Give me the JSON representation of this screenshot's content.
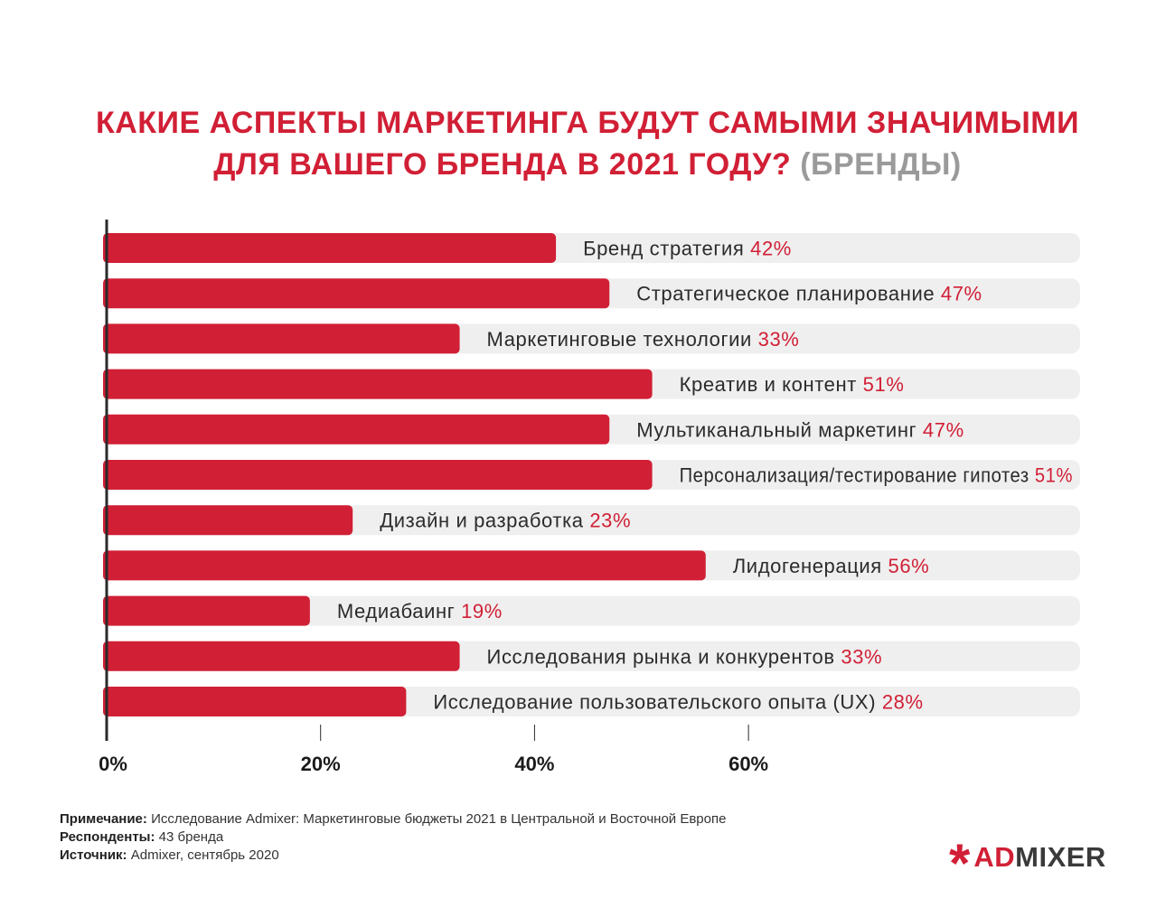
{
  "title": {
    "line1": "КАКИЕ АСПЕКТЫ МАРКЕТИНГА БУДУТ САМЫМИ ЗНАЧИМЫМИ",
    "line2_main": "ДЛЯ ВАШЕГО БРЕНДА В 2021 ГОДУ?",
    "line2_sub": "(БРЕНДЫ)"
  },
  "colors": {
    "bar": "#d11f35",
    "track": "#efefef",
    "axis": "#2a2a2a",
    "value_text": "#d11f35",
    "title_sub": "#9a9a9a"
  },
  "chart_data": {
    "type": "bar",
    "orientation": "horizontal",
    "categories": [
      "Бренд стратегия",
      "Стратегическое планирование",
      "Маркетинговые технологии",
      "Креатив и контент",
      "Мультиканальный маркетинг",
      "Персонализация/тестирование гипотез",
      "Дизайн и разработка",
      "Лидогенерация",
      "Медиабаинг",
      "Исследования рынка и конкурентов",
      "Исследование пользовательского опыта (UX)"
    ],
    "values": [
      42,
      47,
      33,
      51,
      47,
      51,
      23,
      56,
      19,
      33,
      28
    ],
    "value_labels": [
      "42%",
      "47%",
      "33%",
      "51%",
      "47%",
      "51%",
      "23%",
      "56%",
      "19%",
      "33%",
      "28%"
    ],
    "xticks": [
      "0%",
      "20%",
      "40%",
      "60%"
    ],
    "xtick_values": [
      0,
      20,
      40,
      60
    ],
    "xlim": [
      0,
      91
    ],
    "grid": false
  },
  "notes": {
    "note_label": "Примечание:",
    "note_text": "Исследование Admixer: Маркетинговые бюджеты 2021 в Центральной и Восточной Европе",
    "respondents_label": "Респонденты:",
    "respondents_text": "43 бренда",
    "source_label": "Источник:",
    "source_text": "Admixer, сентябрь 2020"
  },
  "logo": {
    "mark": "*",
    "part1": "AD",
    "part2": "MIXER"
  }
}
